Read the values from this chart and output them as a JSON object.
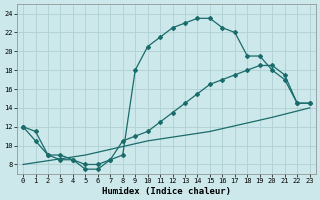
{
  "xlabel": "Humidex (Indice chaleur)",
  "bg_color": "#cce8ea",
  "grid_color": "#b0d0d3",
  "line_color": "#1a6b6b",
  "line1_x": [
    0,
    1,
    2,
    3,
    4,
    5,
    6,
    7,
    8,
    9,
    10,
    11,
    12,
    13,
    14,
    15,
    16,
    17,
    18,
    19,
    20,
    21,
    22,
    23
  ],
  "line1_y": [
    12,
    10.5,
    9.0,
    8.5,
    8.5,
    7.5,
    7.5,
    8.5,
    9.0,
    18.0,
    20.5,
    21.5,
    22.5,
    23.0,
    23.5,
    23.5,
    22.5,
    22.0,
    19.5,
    19.5,
    18.0,
    17.0,
    14.5,
    14.5
  ],
  "line2_x": [
    0,
    1,
    2,
    3,
    4,
    5,
    6,
    7,
    8,
    9,
    10,
    11,
    12,
    13,
    14,
    15,
    16,
    17,
    18,
    19,
    20,
    21,
    22,
    23
  ],
  "line2_y": [
    12.0,
    11.5,
    9.0,
    9.0,
    8.5,
    8.0,
    8.0,
    8.5,
    10.5,
    11.0,
    11.5,
    12.5,
    13.5,
    14.5,
    15.5,
    16.5,
    17.0,
    17.5,
    18.0,
    18.5,
    18.5,
    17.5,
    14.5,
    14.5
  ],
  "line3_x": [
    0,
    5,
    10,
    15,
    20,
    23
  ],
  "line3_y": [
    8.0,
    9.0,
    10.5,
    11.5,
    13.0,
    14.0
  ],
  "xlim": [
    -0.5,
    23.5
  ],
  "ylim": [
    7.0,
    25.0
  ],
  "xticks": [
    0,
    1,
    2,
    3,
    4,
    5,
    6,
    7,
    8,
    9,
    10,
    11,
    12,
    13,
    14,
    15,
    16,
    17,
    18,
    19,
    20,
    21,
    22,
    23
  ],
  "yticks": [
    8,
    10,
    12,
    14,
    16,
    18,
    20,
    22,
    24
  ],
  "tick_fontsize": 5.0,
  "xlabel_fontsize": 6.5,
  "markersize": 2.0
}
